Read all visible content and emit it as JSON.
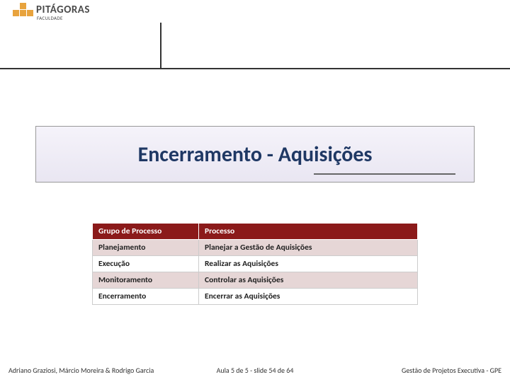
{
  "logo": {
    "name": "PITÁGORAS",
    "sub": "FACULDADE"
  },
  "title": "Encerramento - Aquisições",
  "table": {
    "headers": [
      "Grupo de Processo",
      "Processo"
    ],
    "rows": [
      [
        "Planejamento",
        "Planejar a Gestão de Aquisições"
      ],
      [
        "Execução",
        "Realizar as Aquisições"
      ],
      [
        "Monitoramento",
        "Controlar as Aquisições"
      ],
      [
        "Encerramento",
        "Encerrar as Aquisições"
      ]
    ],
    "header_bg": "#8b1a1a",
    "header_fg": "#ffffff",
    "band_bg": "#e6d6d6"
  },
  "footer": {
    "left": "Adriano Graziosi, Márcio Moreira & Rodrigo Garcia",
    "center": "Aula 5 de 5 - slide 54 de 64",
    "right": "Gestão de Projetos Executiva - GPE"
  }
}
